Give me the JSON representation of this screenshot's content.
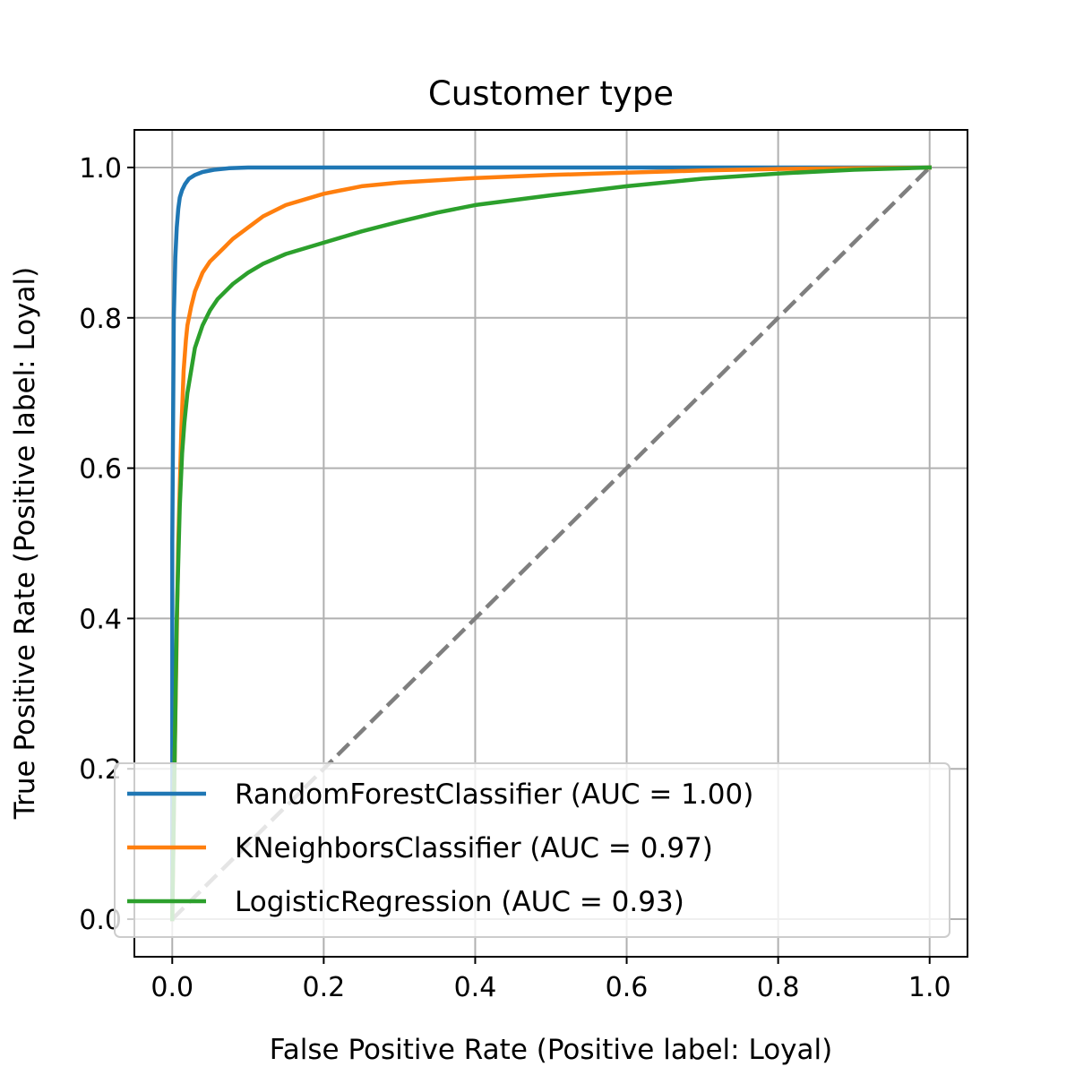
{
  "chart_data": {
    "type": "line",
    "title": "Customer type",
    "xlabel": "False Positive Rate (Positive label: Loyal)",
    "ylabel": "True Positive Rate (Positive label: Loyal)",
    "xlim": [
      -0.05,
      1.05
    ],
    "ylim": [
      -0.05,
      1.05
    ],
    "xticks": [
      "0.0",
      "0.2",
      "0.4",
      "0.6",
      "0.8",
      "1.0"
    ],
    "yticks": [
      "0.0",
      "0.2",
      "0.4",
      "0.6",
      "0.8",
      "1.0"
    ],
    "grid": true,
    "legend_position": "lower-right",
    "chance_line": {
      "x": [
        0,
        1
      ],
      "y": [
        0,
        1
      ],
      "color": "#7f7f7f",
      "style": "dashed"
    },
    "series": [
      {
        "name": "RandomForestClassifier (AUC = 1.00)",
        "color": "#1f77b4",
        "x": [
          0,
          0,
          0.002,
          0.004,
          0.006,
          0.008,
          0.01,
          0.013,
          0.017,
          0.022,
          0.03,
          0.04,
          0.055,
          0.075,
          0.1,
          0.15,
          0.25,
          0.5,
          1.0
        ],
        "y": [
          0,
          0.5,
          0.8,
          0.88,
          0.92,
          0.945,
          0.96,
          0.97,
          0.978,
          0.985,
          0.99,
          0.994,
          0.997,
          0.999,
          1.0,
          1.0,
          1.0,
          1.0,
          1.0
        ]
      },
      {
        "name": "KNeighborsClassifier (AUC = 0.97)",
        "color": "#ff7f0e",
        "x": [
          0,
          0.003,
          0.008,
          0.012,
          0.015,
          0.018,
          0.02,
          0.025,
          0.03,
          0.04,
          0.05,
          0.06,
          0.07,
          0.08,
          0.1,
          0.12,
          0.15,
          0.2,
          0.25,
          0.3,
          0.4,
          0.5,
          0.6,
          0.7,
          0.8,
          0.9,
          1.0
        ],
        "y": [
          0,
          0.2,
          0.5,
          0.65,
          0.73,
          0.77,
          0.79,
          0.815,
          0.835,
          0.86,
          0.875,
          0.885,
          0.895,
          0.905,
          0.92,
          0.935,
          0.95,
          0.965,
          0.975,
          0.98,
          0.986,
          0.99,
          0.993,
          0.996,
          0.998,
          0.999,
          1.0
        ]
      },
      {
        "name": "LogisticRegression (AUC = 0.93)",
        "color": "#2ca02c",
        "x": [
          0,
          0.003,
          0.006,
          0.01,
          0.013,
          0.016,
          0.02,
          0.025,
          0.03,
          0.04,
          0.05,
          0.06,
          0.08,
          0.1,
          0.12,
          0.15,
          0.2,
          0.25,
          0.3,
          0.35,
          0.4,
          0.5,
          0.6,
          0.7,
          0.8,
          0.9,
          1.0
        ],
        "y": [
          0,
          0.2,
          0.4,
          0.55,
          0.62,
          0.66,
          0.7,
          0.73,
          0.76,
          0.79,
          0.81,
          0.825,
          0.845,
          0.86,
          0.872,
          0.885,
          0.9,
          0.915,
          0.928,
          0.94,
          0.95,
          0.963,
          0.975,
          0.985,
          0.992,
          0.997,
          1.0
        ]
      }
    ]
  }
}
